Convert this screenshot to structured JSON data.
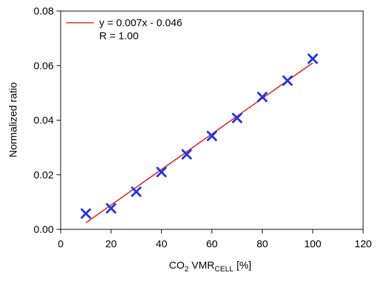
{
  "chart_data": {
    "type": "scatter",
    "title": "",
    "xlabel": {
      "prefix": "CO",
      "sub1": "2",
      "middle": " VMR",
      "sub2": "CELL",
      "suffix": " [%]"
    },
    "ylabel": "Normalized ratio",
    "xlim": [
      0,
      120
    ],
    "ylim": [
      0,
      0.08
    ],
    "xticks": [
      0,
      20,
      40,
      60,
      80,
      100,
      120
    ],
    "yticks": [
      0.0,
      0.02,
      0.04,
      0.06,
      0.08
    ],
    "xtick_labels": [
      "0",
      "20",
      "40",
      "60",
      "80",
      "100",
      "120"
    ],
    "ytick_labels": [
      "0.00",
      "0.02",
      "0.04",
      "0.06",
      "0.08"
    ],
    "grid": false,
    "series": [
      {
        "marker": "x",
        "color": "#2233dd",
        "x": [
          10,
          20,
          30,
          40,
          50,
          60,
          70,
          80,
          90,
          100
        ],
        "y": [
          0.0058,
          0.0077,
          0.0138,
          0.021,
          0.0275,
          0.0342,
          0.0408,
          0.0485,
          0.0545,
          0.0625
        ]
      }
    ],
    "fit_line": {
      "color": "#e02020",
      "x": [
        10,
        100
      ],
      "y": [
        0.0024,
        0.061
      ]
    },
    "legend": {
      "placement": "top-left",
      "lines": [
        "y = 0.007x - 0.046",
        "R = 1.00"
      ]
    }
  }
}
